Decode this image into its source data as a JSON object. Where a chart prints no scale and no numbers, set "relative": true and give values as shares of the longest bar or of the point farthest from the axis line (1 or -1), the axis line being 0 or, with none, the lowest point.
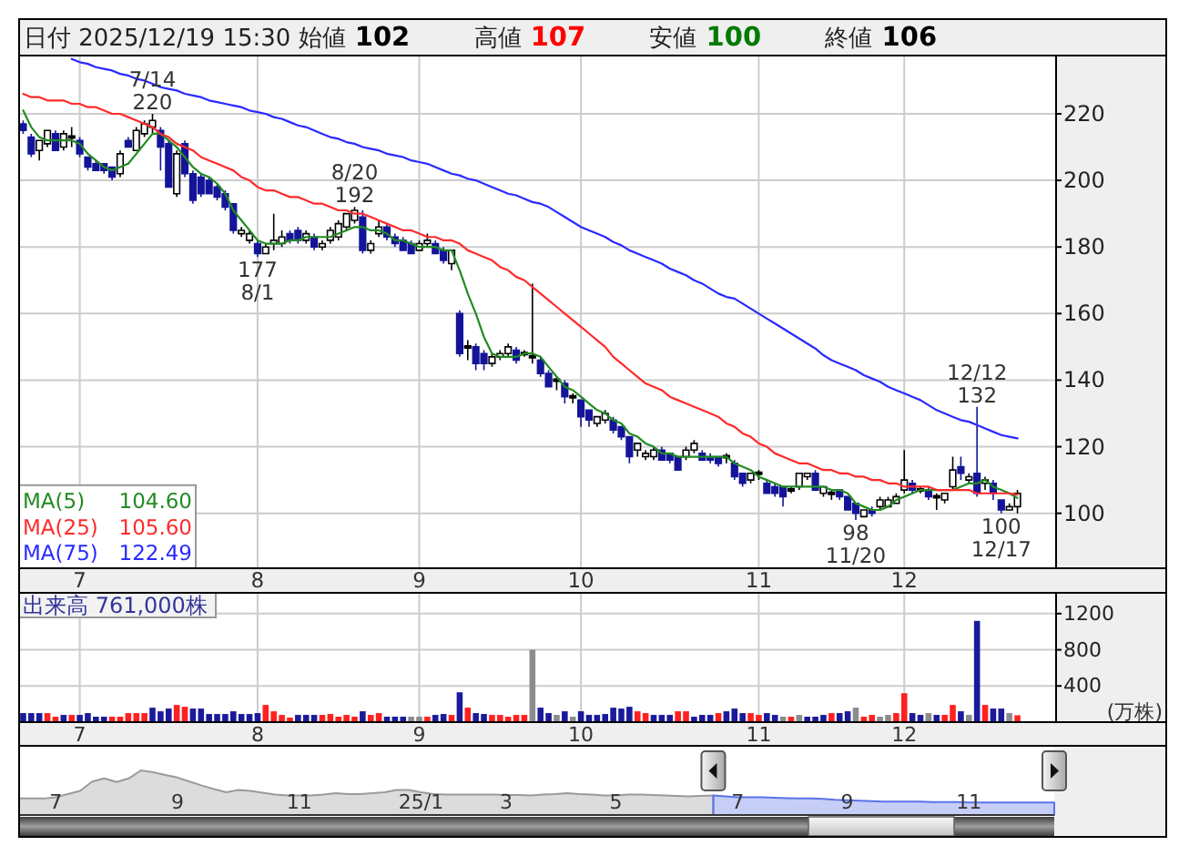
{
  "chart_data": [
    {
      "type": "candlestick",
      "title": "日付 2025/12/19 15:30 始値 102 高値 107 安値 100 終値 106",
      "categories": [
        null,
        null,
        null,
        null,
        null,
        null,
        null,
        "7",
        null,
        null,
        null,
        null,
        null,
        null,
        null,
        null,
        null,
        null,
        null,
        null,
        null,
        null,
        null,
        null,
        null,
        null,
        null,
        null,
        null,
        "8",
        null,
        null,
        null,
        null,
        null,
        null,
        null,
        null,
        null,
        null,
        null,
        null,
        null,
        null,
        null,
        null,
        null,
        null,
        null,
        "9",
        null,
        null,
        null,
        null,
        null,
        null,
        null,
        null,
        null,
        null,
        null,
        null,
        null,
        null,
        null,
        null,
        null,
        null,
        null,
        "10",
        null,
        null,
        null,
        null,
        null,
        null,
        null,
        null,
        null,
        null,
        null,
        null,
        null,
        null,
        null,
        null,
        null,
        null,
        null,
        null,
        null,
        "11",
        null,
        null,
        null,
        null,
        null,
        null,
        null,
        null,
        null,
        null,
        null,
        null,
        null,
        null,
        null,
        null,
        null,
        "12",
        null,
        null,
        null,
        null,
        null,
        null,
        null,
        null,
        null,
        null,
        null,
        null,
        null,
        null
      ],
      "ohlc": [
        [
          217,
          218,
          214,
          215
        ],
        [
          213,
          214,
          207,
          208
        ],
        [
          209,
          212,
          206,
          212
        ],
        [
          211,
          215,
          210,
          215
        ],
        [
          214,
          215,
          209,
          209
        ],
        [
          210,
          215,
          209,
          214
        ],
        [
          213,
          216,
          210,
          213
        ],
        [
          212,
          213,
          207,
          208
        ],
        [
          207,
          207,
          203,
          204
        ],
        [
          205,
          206,
          203,
          203
        ],
        [
          205,
          205,
          202,
          203
        ],
        [
          204,
          204,
          200,
          201
        ],
        [
          202,
          209,
          201,
          208
        ],
        [
          212,
          213,
          210,
          210
        ],
        [
          209,
          216,
          209,
          215
        ],
        [
          214,
          218,
          213,
          217
        ],
        [
          216,
          220,
          214,
          218
        ],
        [
          215,
          216,
          203,
          210
        ],
        [
          211,
          212,
          198,
          198
        ],
        [
          196,
          209,
          195,
          208
        ],
        [
          211,
          212,
          201,
          202
        ],
        [
          202,
          203,
          193,
          194
        ],
        [
          201,
          202,
          195,
          196
        ],
        [
          200,
          201,
          196,
          196
        ],
        [
          198,
          199,
          194,
          195
        ],
        [
          196,
          197,
          191,
          192
        ],
        [
          193,
          193,
          184,
          185
        ],
        [
          184,
          186,
          183,
          185
        ],
        [
          182,
          185,
          181,
          184
        ],
        [
          181,
          182,
          177,
          178
        ],
        [
          178,
          181,
          178,
          180
        ],
        [
          181,
          190,
          179,
          182
        ],
        [
          181,
          185,
          180,
          183
        ],
        [
          184,
          185,
          181,
          182
        ],
        [
          185,
          186,
          181,
          182
        ],
        [
          182,
          185,
          181,
          184
        ],
        [
          183,
          184,
          179,
          180
        ],
        [
          180,
          182,
          179,
          181
        ],
        [
          182,
          186,
          181,
          185
        ],
        [
          183,
          188,
          182,
          187
        ],
        [
          186,
          190,
          185,
          190
        ],
        [
          188,
          192,
          187,
          191
        ],
        [
          189,
          191,
          178,
          179
        ],
        [
          179,
          182,
          178,
          181
        ],
        [
          184,
          188,
          183,
          186
        ],
        [
          186,
          187,
          182,
          183
        ],
        [
          183,
          184,
          180,
          181
        ],
        [
          182,
          183,
          179,
          179
        ],
        [
          181,
          182,
          178,
          178
        ],
        [
          179,
          182,
          179,
          181
        ],
        [
          181,
          184,
          180,
          182
        ],
        [
          181,
          182,
          178,
          178
        ],
        [
          179,
          180,
          175,
          176
        ],
        [
          175,
          179,
          173,
          179
        ],
        [
          160,
          161,
          147,
          148
        ],
        [
          150,
          152,
          146,
          150
        ],
        [
          150,
          151,
          143,
          145
        ],
        [
          148,
          149,
          143,
          145
        ],
        [
          145,
          148,
          144,
          147
        ],
        [
          147,
          149,
          146,
          148
        ],
        [
          148,
          151,
          147,
          150
        ],
        [
          149,
          150,
          145,
          146
        ],
        [
          148,
          149,
          147,
          148
        ],
        [
          147,
          169,
          145,
          147
        ],
        [
          146,
          147,
          141,
          142
        ],
        [
          142,
          143,
          138,
          138
        ],
        [
          140,
          141,
          137,
          140
        ],
        [
          139,
          140,
          133,
          135
        ],
        [
          135,
          136,
          133,
          135
        ],
        [
          134,
          134,
          126,
          129
        ],
        [
          131,
          131,
          126,
          128
        ],
        [
          127,
          129,
          126,
          129
        ],
        [
          128,
          131,
          127,
          130
        ],
        [
          128,
          129,
          124,
          125
        ],
        [
          126,
          126,
          122,
          123
        ],
        [
          123,
          123,
          115,
          117
        ],
        [
          119,
          121,
          117,
          121
        ],
        [
          117,
          119,
          116,
          118
        ],
        [
          117,
          120,
          116,
          119
        ],
        [
          119,
          120,
          116,
          116
        ],
        [
          118,
          118,
          115,
          116
        ],
        [
          117,
          117,
          113,
          113
        ],
        [
          117,
          120,
          116,
          119
        ],
        [
          119,
          122,
          118,
          121
        ],
        [
          118,
          119,
          116,
          116
        ],
        [
          117,
          118,
          115,
          116
        ],
        [
          117,
          117,
          114,
          115
        ],
        [
          117,
          118,
          115,
          117
        ],
        [
          115,
          116,
          110,
          111
        ],
        [
          112,
          112,
          108,
          109
        ],
        [
          110,
          112,
          109,
          112
        ],
        [
          112,
          113,
          110,
          112
        ],
        [
          109,
          110,
          106,
          106
        ],
        [
          108,
          109,
          105,
          106
        ],
        [
          108,
          108,
          102,
          105
        ],
        [
          107,
          108,
          106,
          107
        ],
        [
          108,
          112,
          107,
          112
        ],
        [
          111,
          112,
          110,
          112
        ],
        [
          112,
          113,
          107,
          107
        ],
        [
          106,
          108,
          105,
          108
        ],
        [
          106,
          107,
          104,
          106
        ],
        [
          107,
          107,
          104,
          105
        ],
        [
          105,
          105,
          101,
          101
        ],
        [
          103,
          103,
          98,
          100
        ],
        [
          99,
          101,
          99,
          101
        ],
        [
          101,
          102,
          99,
          100
        ],
        [
          102,
          105,
          101,
          104
        ],
        [
          102,
          105,
          102,
          104
        ],
        [
          103,
          106,
          103,
          105
        ],
        [
          107,
          119,
          106,
          110
        ],
        [
          109,
          110,
          106,
          107
        ],
        [
          107,
          108,
          106,
          107
        ],
        [
          107,
          108,
          104,
          105
        ],
        [
          105,
          106,
          101,
          105
        ],
        [
          104,
          106,
          103,
          106
        ],
        [
          108,
          117,
          107,
          113
        ],
        [
          114,
          117,
          110,
          112
        ],
        [
          110,
          112,
          109,
          111
        ],
        [
          112,
          132,
          105,
          106
        ],
        [
          109,
          111,
          107,
          110
        ],
        [
          109,
          110,
          104,
          106
        ],
        [
          104,
          104,
          100,
          101
        ],
        [
          101,
          103,
          101,
          102
        ],
        [
          102,
          107,
          100,
          106
        ]
      ],
      "series": [
        {
          "name": "MA(5) 104.60",
          "type": "line",
          "color": "#228b22",
          "values": [
            221,
            216,
            213,
            212,
            212,
            212,
            212,
            211,
            208,
            206,
            204,
            203,
            204,
            205,
            208,
            211,
            214,
            214,
            212,
            210,
            207,
            204,
            202,
            201,
            199,
            196,
            191,
            188,
            185,
            182,
            181,
            181,
            181,
            182,
            182,
            183,
            183,
            183,
            183,
            184,
            185,
            186,
            186,
            185,
            185,
            184,
            182,
            182,
            181,
            180,
            180,
            180,
            179,
            179,
            173,
            166,
            160,
            153,
            148,
            147,
            147,
            147,
            148,
            148,
            147,
            144,
            141,
            138,
            137,
            135,
            133,
            131,
            130,
            128,
            127,
            124,
            123,
            121,
            120,
            118,
            118,
            117,
            117,
            117,
            117,
            117,
            117,
            117,
            115,
            114,
            113,
            111,
            110,
            109,
            108,
            108,
            108,
            108,
            108,
            108,
            107,
            107,
            106,
            103,
            102,
            101,
            101,
            102,
            104,
            105,
            106,
            107,
            107,
            107,
            107,
            107,
            108,
            109,
            109,
            110,
            108,
            107,
            106,
            104.6
          ]
        },
        {
          "name": "MA(25) 105.60",
          "type": "line",
          "color": "#ff2a2a",
          "values": [
            226,
            225,
            225,
            224,
            224,
            224,
            223,
            223,
            222,
            222,
            221,
            220,
            220,
            219,
            218,
            217,
            216,
            214,
            213,
            211,
            210,
            209,
            207,
            206,
            205,
            204,
            203,
            201,
            200,
            198,
            197,
            197,
            196,
            195,
            195,
            194,
            193,
            193,
            192,
            191,
            191,
            190,
            190,
            189,
            188,
            187,
            186,
            185,
            185,
            184,
            183,
            183,
            182,
            182,
            181,
            179,
            178,
            177,
            176,
            174,
            173,
            171,
            170,
            168,
            166,
            164,
            162,
            160,
            158,
            156,
            154,
            152,
            150,
            147,
            145,
            143,
            141,
            139,
            138,
            137,
            135,
            134,
            133,
            132,
            131,
            130,
            129,
            127,
            126,
            124,
            123,
            121,
            120,
            118,
            117,
            116,
            115,
            115,
            114,
            113,
            113,
            112,
            112,
            111,
            111,
            110,
            110,
            109,
            109,
            108,
            108,
            108,
            108,
            107,
            107,
            107,
            107,
            107,
            106,
            106,
            106,
            106,
            106,
            105.6
          ]
        },
        {
          "name": "MA(75) 122.49",
          "type": "line",
          "color": "#2a2aff",
          "values": [
            null,
            null,
            null,
            null,
            null,
            null,
            236.5,
            235.5,
            235,
            234,
            233.5,
            233,
            232,
            231.5,
            230.5,
            230,
            229,
            228,
            227.5,
            227,
            226,
            225.5,
            225,
            224,
            223.5,
            223,
            222.5,
            222,
            221,
            220.5,
            220,
            219,
            218.5,
            217.5,
            216.5,
            216,
            215,
            214,
            213,
            212.5,
            211.5,
            211,
            210,
            209.5,
            209,
            208,
            207.5,
            207,
            206,
            205.5,
            205,
            204,
            203,
            202,
            201.5,
            200.5,
            200,
            199,
            198,
            197,
            196,
            195.5,
            194.5,
            193.5,
            193,
            192,
            190.5,
            189,
            187.5,
            186,
            185,
            184,
            183,
            181.5,
            180.5,
            179,
            178,
            177,
            176,
            175,
            173.5,
            172.5,
            171.5,
            170,
            169,
            167.5,
            166,
            165,
            164.5,
            163,
            161.5,
            160,
            158.5,
            157,
            155.5,
            154,
            152.5,
            151,
            149.5,
            147.5,
            146,
            145,
            144,
            143,
            141.5,
            140.5,
            139.5,
            138,
            137,
            136,
            135,
            134,
            132.5,
            131,
            130,
            129,
            128,
            127.5,
            126.5,
            125.5,
            124.5,
            123.5,
            123,
            122.5
          ]
        }
      ],
      "ylim": [
        83.5,
        237.5
      ],
      "yticks": [
        100,
        120,
        140,
        160,
        180,
        200,
        220
      ],
      "grid": true,
      "legend": "bottom left",
      "annotations": [
        {
          "text": "7/14\n220",
          "y": 220
        },
        {
          "text": "177\n8/1",
          "y": 177
        },
        {
          "text": "8/20\n192",
          "y": 192
        },
        {
          "text": "98\n11/20",
          "y": 98
        },
        {
          "text": "12/12\n132",
          "y": 132
        },
        {
          "text": "100\n12/17",
          "y": 100
        }
      ]
    },
    {
      "type": "bar",
      "title": "出来高 761,000株",
      "ylabel": "(万株)",
      "categories": [
        null,
        null,
        null,
        null,
        null,
        null,
        null,
        "7",
        null,
        null,
        null,
        null,
        null,
        null,
        null,
        null,
        null,
        null,
        null,
        null,
        null,
        null,
        null,
        null,
        null,
        null,
        null,
        null,
        null,
        "8",
        null,
        null,
        null,
        null,
        null,
        null,
        null,
        null,
        null,
        null,
        null,
        null,
        null,
        null,
        null,
        null,
        null,
        null,
        null,
        "9",
        null,
        null,
        null,
        null,
        null,
        null,
        null,
        null,
        null,
        null,
        null,
        null,
        null,
        null,
        null,
        null,
        null,
        null,
        null,
        "10",
        null,
        null,
        null,
        null,
        null,
        null,
        null,
        null,
        null,
        null,
        null,
        null,
        null,
        null,
        null,
        null,
        null,
        null,
        null,
        null,
        null,
        "11",
        null,
        null,
        null,
        null,
        null,
        null,
        null,
        null,
        null,
        null,
        null,
        null,
        null,
        null,
        null,
        null,
        null,
        "12",
        null,
        null,
        null,
        null,
        null,
        null,
        null,
        null,
        null,
        null,
        null,
        null,
        null,
        null
      ],
      "values": [
        100,
        100,
        100,
        100,
        60,
        80,
        80,
        80,
        100,
        60,
        60,
        60,
        60,
        100,
        100,
        100,
        160,
        120,
        150,
        190,
        170,
        150,
        150,
        90,
        90,
        90,
        120,
        90,
        90,
        100,
        190,
        120,
        80,
        50,
        80,
        80,
        80,
        80,
        90,
        60,
        80,
        60,
        120,
        80,
        100,
        60,
        60,
        60,
        60,
        60,
        60,
        80,
        90,
        80,
        330,
        160,
        100,
        90,
        80,
        80,
        60,
        80,
        80,
        800,
        160,
        100,
        80,
        120,
        60,
        120,
        80,
        80,
        90,
        160,
        150,
        170,
        120,
        100,
        80,
        80,
        80,
        120,
        120,
        60,
        80,
        80,
        100,
        120,
        150,
        100,
        100,
        80,
        100,
        80,
        60,
        60,
        80,
        60,
        60,
        80,
        100,
        100,
        120,
        160,
        60,
        80,
        60,
        80,
        100,
        320,
        100,
        80,
        100,
        80,
        80,
        190,
        120,
        80,
        1120,
        190,
        150,
        150,
        100,
        76
      ],
      "colors": [
        "#1a1a9a",
        "#1a1a9a",
        "#1a1a9a",
        "#ff2020",
        "#ff2020",
        "#1a1a9a",
        "#ff2020",
        "#1a1a9a",
        "#1a1a9a",
        "#1a1a9a",
        "#1a1a9a",
        "#ff2020",
        "#ff2020",
        "#ff2020",
        "#ff2020",
        "#ff2020",
        "#1a1a9a",
        "#1a1a9a",
        "#1a1a9a",
        "#ff2020",
        "#ff2020",
        "#1a1a9a",
        "#1a1a9a",
        "#1a1a9a",
        "#1a1a9a",
        "#1a1a9a",
        "#1a1a9a",
        "#1a1a9a",
        "#1a1a9a",
        "#1a1a9a",
        "#ff2020",
        "#ff2020",
        "#ff2020",
        "#ff2020",
        "#1a1a9a",
        "#1a1a9a",
        "#1a1a9a",
        "#ff2020",
        "#ff2020",
        "#ff2020",
        "#ff2020",
        "#ff2020",
        "#1a1a9a",
        "#ff2020",
        "#ff2020",
        "#1a1a9a",
        "#1a1a9a",
        "#1a1a9a",
        "#8c8c8c",
        "#8c8c8c",
        "#ff2020",
        "#1a1a9a",
        "#1a1a9a",
        "#ff2020",
        "#1a1a9a",
        "#ff2020",
        "#1a1a9a",
        "#1a1a9a",
        "#ff2020",
        "#ff2020",
        "#ff2020",
        "#ff2020",
        "#ff2020",
        "#8c8c8c",
        "#1a1a9a",
        "#1a1a9a",
        "#8c8c8c",
        "#1a1a9a",
        "#8c8c8c",
        "#1a1a9a",
        "#1a1a9a",
        "#1a1a9a",
        "#1a1a9a",
        "#1a1a9a",
        "#1a1a9a",
        "#1a1a9a",
        "#ff2020",
        "#ff2020",
        "#1a1a9a",
        "#1a1a9a",
        "#1a1a9a",
        "#ff2020",
        "#ff2020",
        "#1a1a9a",
        "#1a1a9a",
        "#1a1a9a",
        "#ff2020",
        "#1a1a9a",
        "#1a1a9a",
        "#1a1a9a",
        "#ff2020",
        "#ff2020",
        "#1a1a9a",
        "#1a1a9a",
        "#8c8c8c",
        "#ff2020",
        "#8c8c8c",
        "#1a1a9a",
        "#1a1a9a",
        "#1a1a9a",
        "#ff2020",
        "#1a1a9a",
        "#1a1a9a",
        "#8c8c8c",
        "#ff2020",
        "#ff2020",
        "#8c8c8c",
        "#8c8c8c",
        "#ff2020",
        "#ff2020",
        "#1a1a9a",
        "#1a1a9a",
        "#8c8c8c",
        "#1a1a9a",
        "#ff2020",
        "#ff2020",
        "#1a1a9a",
        "#8c8c8c",
        "#1a1a9a",
        "#ff2020",
        "#1a1a9a",
        "#1a1a9a",
        "#8c8c8c",
        "#ff2020"
      ],
      "ylim": [
        0,
        1430
      ],
      "yticks": [
        400,
        800,
        1200
      ],
      "grid": true
    },
    {
      "type": "area",
      "relative": true,
      "categories": [
        null,
        null,
        null,
        "7",
        null,
        null,
        null,
        null,
        null,
        null,
        null,
        null,
        null,
        "9",
        null,
        null,
        null,
        null,
        null,
        null,
        null,
        null,
        null,
        "11",
        null,
        null,
        null,
        null,
        null,
        null,
        null,
        null,
        null,
        "25/1",
        null,
        null,
        null,
        null,
        null,
        null,
        "3",
        null,
        null,
        null,
        null,
        null,
        null,
        null,
        null,
        "5",
        null,
        null,
        null,
        null,
        null,
        null,
        null,
        null,
        null,
        "7",
        null,
        null,
        null,
        null,
        null,
        null,
        null,
        null,
        "9",
        null,
        null,
        null,
        null,
        null,
        null,
        null,
        null,
        null,
        "11",
        null,
        null,
        null,
        null,
        null,
        null,
        null
      ],
      "series": [
        {
          "color": "#9a9a9a",
          "values": [
            0.37,
            0.37,
            0.37,
            0.4,
            0.47,
            0.54,
            0.75,
            0.82,
            0.74,
            0.82,
            1,
            0.96,
            0.9,
            0.84,
            0.75,
            0.66,
            0.58,
            0.51,
            0.56,
            0.54,
            0.5,
            0.46,
            0.44,
            0.44,
            0.44,
            0.46,
            0.49,
            0.47,
            0.47,
            0.49,
            0.51,
            0.56,
            0.56,
            0.51,
            0.47,
            0.46,
            0.46,
            0.46,
            0.46,
            0.46,
            0.45,
            0.45,
            0.44,
            0.46,
            0.47,
            0.49,
            0.47,
            0.46,
            0.44,
            0.44,
            0.46,
            0.46,
            0.45,
            0.44,
            0.43,
            0.42,
            0.43,
            0.44,
            null,
            null,
            null,
            null,
            null,
            null,
            null,
            null,
            null,
            null,
            null,
            null,
            null,
            null,
            null,
            null,
            null,
            null,
            null,
            null,
            null,
            null,
            null,
            null,
            null,
            null,
            null,
            null
          ]
        },
        {
          "color": "#5b73e8",
          "values": [
            null,
            null,
            null,
            null,
            null,
            null,
            null,
            null,
            null,
            null,
            null,
            null,
            null,
            null,
            null,
            null,
            null,
            null,
            null,
            null,
            null,
            null,
            null,
            null,
            null,
            null,
            null,
            null,
            null,
            null,
            null,
            null,
            null,
            null,
            null,
            null,
            null,
            null,
            null,
            null,
            null,
            null,
            null,
            null,
            null,
            null,
            null,
            null,
            null,
            null,
            null,
            null,
            null,
            null,
            null,
            null,
            null,
            0.44,
            0.42,
            0.4,
            0.4,
            0.4,
            0.39,
            0.38,
            0.37,
            0.37,
            0.36,
            0.34,
            0.33,
            0.32,
            0.31,
            0.3,
            0.3,
            0.3,
            0.3,
            0.29,
            0.29,
            0.29,
            0.28,
            0.28,
            0.28,
            0.28,
            0.28,
            0.28,
            0.28,
            0.28
          ]
        }
      ]
    }
  ]
}
